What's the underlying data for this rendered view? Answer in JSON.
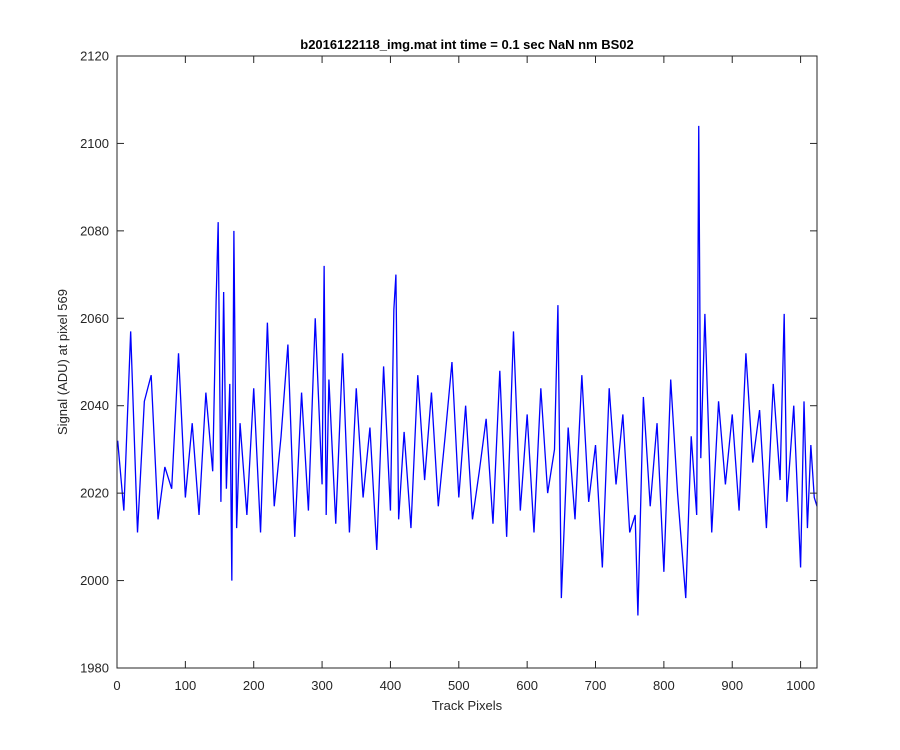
{
  "chart_data": {
    "type": "line",
    "title": "b2016122118_img.mat int time = 0.1 sec  NaN nm BS02",
    "xlabel": "Track Pixels",
    "ylabel": "Signal (ADU) at pixel 569",
    "xlim": [
      0,
      1024
    ],
    "ylim": [
      1980,
      2120
    ],
    "xticks": [
      0,
      100,
      200,
      300,
      400,
      500,
      600,
      700,
      800,
      900,
      1000
    ],
    "yticks": [
      1980,
      2000,
      2020,
      2040,
      2060,
      2080,
      2100,
      2120
    ],
    "grid": false,
    "line_color": "#0000ff",
    "series": [
      {
        "x": [
          1,
          10,
          20,
          30,
          40,
          50,
          60,
          70,
          80,
          90,
          100,
          110,
          120,
          130,
          140,
          145,
          148,
          152,
          156,
          160,
          165,
          168,
          171,
          175,
          180,
          190,
          200,
          210,
          220,
          230,
          240,
          250,
          260,
          270,
          280,
          290,
          300,
          303,
          306,
          310,
          320,
          330,
          340,
          350,
          360,
          370,
          380,
          390,
          400,
          405,
          408,
          412,
          420,
          430,
          440,
          450,
          460,
          470,
          480,
          490,
          500,
          510,
          520,
          530,
          540,
          550,
          560,
          570,
          580,
          590,
          600,
          610,
          620,
          630,
          640,
          645,
          650,
          660,
          670,
          680,
          690,
          700,
          710,
          720,
          730,
          740,
          750,
          758,
          762,
          770,
          780,
          790,
          800,
          810,
          820,
          832,
          840,
          848,
          851,
          854,
          860,
          870,
          880,
          890,
          900,
          910,
          920,
          930,
          940,
          950,
          960,
          970,
          976,
          980,
          990,
          1000,
          1005,
          1010,
          1015,
          1020,
          1024
        ],
        "y": [
          2032,
          2016,
          2057,
          2011,
          2041,
          2047,
          2014,
          2026,
          2021,
          2052,
          2019,
          2036,
          2015,
          2043,
          2025,
          2064,
          2082,
          2018,
          2066,
          2021,
          2045,
          2000,
          2080,
          2012,
          2036,
          2015,
          2044,
          2011,
          2059,
          2017,
          2033,
          2054,
          2010,
          2043,
          2016,
          2060,
          2022,
          2072,
          2015,
          2046,
          2013,
          2052,
          2011,
          2044,
          2019,
          2035,
          2007,
          2049,
          2016,
          2062,
          2070,
          2014,
          2034,
          2012,
          2047,
          2023,
          2043,
          2017,
          2033,
          2050,
          2019,
          2040,
          2014,
          2025,
          2037,
          2013,
          2048,
          2010,
          2057,
          2016,
          2038,
          2011,
          2044,
          2020,
          2030,
          2063,
          1996,
          2035,
          2014,
          2047,
          2018,
          2031,
          2003,
          2044,
          2022,
          2038,
          2011,
          2015,
          1992,
          2042,
          2017,
          2036,
          2002,
          2046,
          2020,
          1996,
          2033,
          2015,
          2104,
          2028,
          2061,
          2011,
          2041,
          2022,
          2038,
          2016,
          2052,
          2027,
          2039,
          2012,
          2045,
          2023,
          2061,
          2018,
          2040,
          2003,
          2041,
          2012,
          2031,
          2019,
          2017
        ]
      }
    ]
  }
}
